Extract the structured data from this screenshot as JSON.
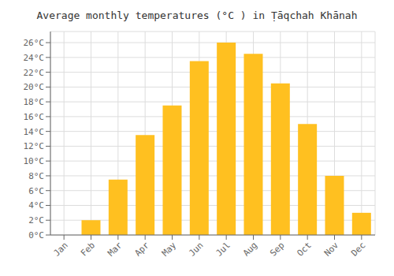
{
  "chart_data": {
    "type": "bar",
    "title": "Average monthly temperatures (°C ) in Ṭāqchah Khānah",
    "categories": [
      "Jan",
      "Feb",
      "Mar",
      "Apr",
      "May",
      "Jun",
      "Jul",
      "Aug",
      "Sep",
      "Oct",
      "Nov",
      "Dec"
    ],
    "values": [
      0,
      2,
      7.5,
      13.5,
      17.5,
      23.5,
      26,
      24.5,
      20.5,
      15,
      8,
      3
    ],
    "color": "#FFC020",
    "ylim": [
      0,
      27.5
    ],
    "yticks": [
      {
        "value": 0,
        "label": "0°C"
      },
      {
        "value": 2,
        "label": "2°C"
      },
      {
        "value": 4,
        "label": "4°C"
      },
      {
        "value": 6,
        "label": "6°C"
      },
      {
        "value": 8,
        "label": "8°C"
      },
      {
        "value": 10,
        "label": "10°C"
      },
      {
        "value": 12,
        "label": "12°C"
      },
      {
        "value": 14,
        "label": "14°C"
      },
      {
        "value": 16,
        "label": "16°C"
      },
      {
        "value": 18,
        "label": "18°C"
      },
      {
        "value": 20,
        "label": "20°C"
      },
      {
        "value": 22,
        "label": "22°C"
      },
      {
        "value": 24,
        "label": "24°C"
      },
      {
        "value": 26,
        "label": "26°C"
      }
    ],
    "grid": true
  }
}
